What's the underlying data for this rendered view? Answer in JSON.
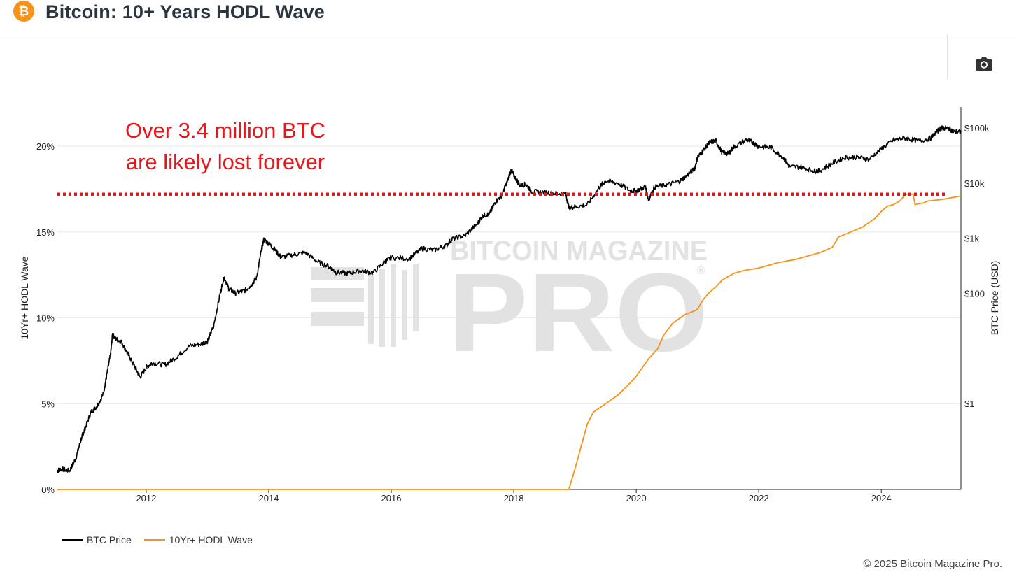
{
  "header": {
    "title": "Bitcoin: 10+ Years HODL Wave",
    "logo_icon": "bitcoin-logo-icon",
    "logo_color": "#f7931a"
  },
  "toolbar": {
    "screenshot_icon": "camera-icon"
  },
  "watermark": {
    "line1": "BITCOIN MAGAZINE",
    "line2": "PRO",
    "mark": "®"
  },
  "annotation": {
    "line1": "Over 3.4 million BTC",
    "line2": "are likely lost forever",
    "color": "#e8161b",
    "threshold_pct": 17.2
  },
  "legend": {
    "items": [
      {
        "label": "BTC Price",
        "color": "#000000"
      },
      {
        "label": "10Yr+ HODL Wave",
        "color": "#f7931a"
      }
    ]
  },
  "copyright": "© 2025 Bitcoin Magazine Pro.",
  "chart_data": {
    "type": "line",
    "xlabel": "",
    "ylabel": "10Yr+ HODL Wave",
    "y2label": "BTC Price (USD)",
    "xlim": [
      2010.55,
      2025.3
    ],
    "ylim": [
      0,
      20
    ],
    "y2_scale": "log",
    "y2lim": [
      0.01,
      300000
    ],
    "x_ticks": [
      "2012",
      "2014",
      "2016",
      "2018",
      "2020",
      "2022",
      "2024"
    ],
    "x_tick_values": [
      2012,
      2014,
      2016,
      2018,
      2020,
      2022,
      2024
    ],
    "y_ticks": [
      "0%",
      "5%",
      "10%",
      "15%",
      "20%"
    ],
    "y_tick_values": [
      0,
      5,
      10,
      15,
      20
    ],
    "y2_ticks": [
      "$1",
      "$100",
      "$1k",
      "$10k",
      "$100k"
    ],
    "y2_tick_values": [
      1,
      100,
      1000,
      10000,
      100000
    ],
    "grid": true,
    "legend_position": "bottom-left",
    "series": [
      {
        "name": "BTC Price",
        "axis": "right",
        "color": "#000000",
        "x": [
          2010.55,
          2010.6,
          2010.75,
          2010.85,
          2010.95,
          2011.0,
          2011.1,
          2011.2,
          2011.3,
          2011.35,
          2011.42,
          2011.45,
          2011.5,
          2011.6,
          2011.7,
          2011.8,
          2011.9,
          2012.0,
          2012.1,
          2012.3,
          2012.5,
          2012.7,
          2012.9,
          2013.0,
          2013.1,
          2013.2,
          2013.27,
          2013.35,
          2013.45,
          2013.6,
          2013.7,
          2013.8,
          2013.88,
          2013.92,
          2014.0,
          2014.1,
          2014.2,
          2014.4,
          2014.6,
          2014.8,
          2015.0,
          2015.1,
          2015.3,
          2015.5,
          2015.7,
          2015.9,
          2016.0,
          2016.3,
          2016.5,
          2016.7,
          2016.9,
          2017.0,
          2017.2,
          2017.4,
          2017.5,
          2017.6,
          2017.7,
          2017.8,
          2017.9,
          2017.96,
          2018.0,
          2018.1,
          2018.2,
          2018.3,
          2018.5,
          2018.7,
          2018.85,
          2018.9,
          2019.0,
          2019.2,
          2019.4,
          2019.5,
          2019.7,
          2019.9,
          2020.0,
          2020.15,
          2020.2,
          2020.3,
          2020.5,
          2020.7,
          2020.8,
          2020.95,
          2021.0,
          2021.1,
          2021.2,
          2021.3,
          2021.4,
          2021.5,
          2021.6,
          2021.8,
          2021.9,
          2022.0,
          2022.2,
          2022.4,
          2022.5,
          2022.7,
          2022.9,
          2023.0,
          2023.2,
          2023.4,
          2023.6,
          2023.8,
          2024.0,
          2024.2,
          2024.4,
          2024.6,
          2024.8,
          2024.95,
          2025.0,
          2025.1,
          2025.2,
          2025.3
        ],
        "values": [
          0.06,
          0.065,
          0.06,
          0.1,
          0.25,
          0.35,
          0.7,
          0.9,
          1.5,
          3.0,
          8.0,
          18.0,
          15.0,
          13.0,
          8.0,
          5.0,
          3.0,
          4.5,
          5.5,
          5.0,
          7.0,
          11.0,
          12.0,
          13.5,
          25.0,
          90.0,
          200.0,
          120.0,
          100.0,
          110.0,
          135.0,
          190.0,
          600.0,
          950.0,
          800.0,
          620.0,
          450.0,
          500.0,
          550.0,
          370.0,
          300.0,
          240.0,
          230.0,
          260.0,
          235.0,
          380.0,
          440.0,
          430.0,
          650.0,
          610.0,
          740.0,
          980.0,
          1100.0,
          1800.0,
          2600.0,
          2700.0,
          4500.0,
          6000.0,
          11000.0,
          17500.0,
          14000.0,
          9000.0,
          9500.0,
          7000.0,
          6800.0,
          6500.0,
          6300.0,
          3500.0,
          3700.0,
          4000.0,
          8500.0,
          11000.0,
          10000.0,
          7300.0,
          7200.0,
          8600.0,
          5000.0,
          8500.0,
          9300.0,
          10700.0,
          13000.0,
          18000.0,
          29000.0,
          40000.0,
          55000.0,
          58000.0,
          36000.0,
          34000.0,
          46000.0,
          61000.0,
          55000.0,
          46000.0,
          44000.0,
          29000.0,
          20000.0,
          19500.0,
          16500.0,
          16800.0,
          23000.0,
          29000.0,
          29500.0,
          27000.0,
          42000.0,
          60000.0,
          66000.0,
          58000.0,
          65000.0,
          95000.0,
          100000.0,
          98000.0,
          85000.0,
          84000.0
        ]
      },
      {
        "name": "10Yr+ HODL Wave",
        "axis": "left",
        "color": "#f7931a",
        "x": [
          2010.55,
          2018.9,
          2019.0,
          2019.1,
          2019.2,
          2019.3,
          2019.5,
          2019.7,
          2019.9,
          2020.0,
          2020.2,
          2020.35,
          2020.45,
          2020.6,
          2020.8,
          2020.95,
          2021.0,
          2021.1,
          2021.2,
          2021.3,
          2021.4,
          2021.5,
          2021.6,
          2021.75,
          2022.0,
          2022.3,
          2022.6,
          2022.8,
          2023.0,
          2023.2,
          2023.3,
          2023.5,
          2023.7,
          2023.9,
          2024.0,
          2024.1,
          2024.2,
          2024.3,
          2024.4,
          2024.52,
          2024.55,
          2024.7,
          2024.75,
          2025.0,
          2025.3
        ],
        "values": [
          0.0,
          0.0,
          1.2,
          2.5,
          3.8,
          4.5,
          5.0,
          5.5,
          6.2,
          6.6,
          7.6,
          8.2,
          9.0,
          9.7,
          10.2,
          10.4,
          10.5,
          11.1,
          11.5,
          11.8,
          12.2,
          12.4,
          12.6,
          12.75,
          12.9,
          13.2,
          13.4,
          13.6,
          13.8,
          14.1,
          14.7,
          15.0,
          15.3,
          15.8,
          16.2,
          16.5,
          16.6,
          16.8,
          17.2,
          17.2,
          16.6,
          16.7,
          16.8,
          16.9,
          17.1
        ]
      }
    ]
  }
}
